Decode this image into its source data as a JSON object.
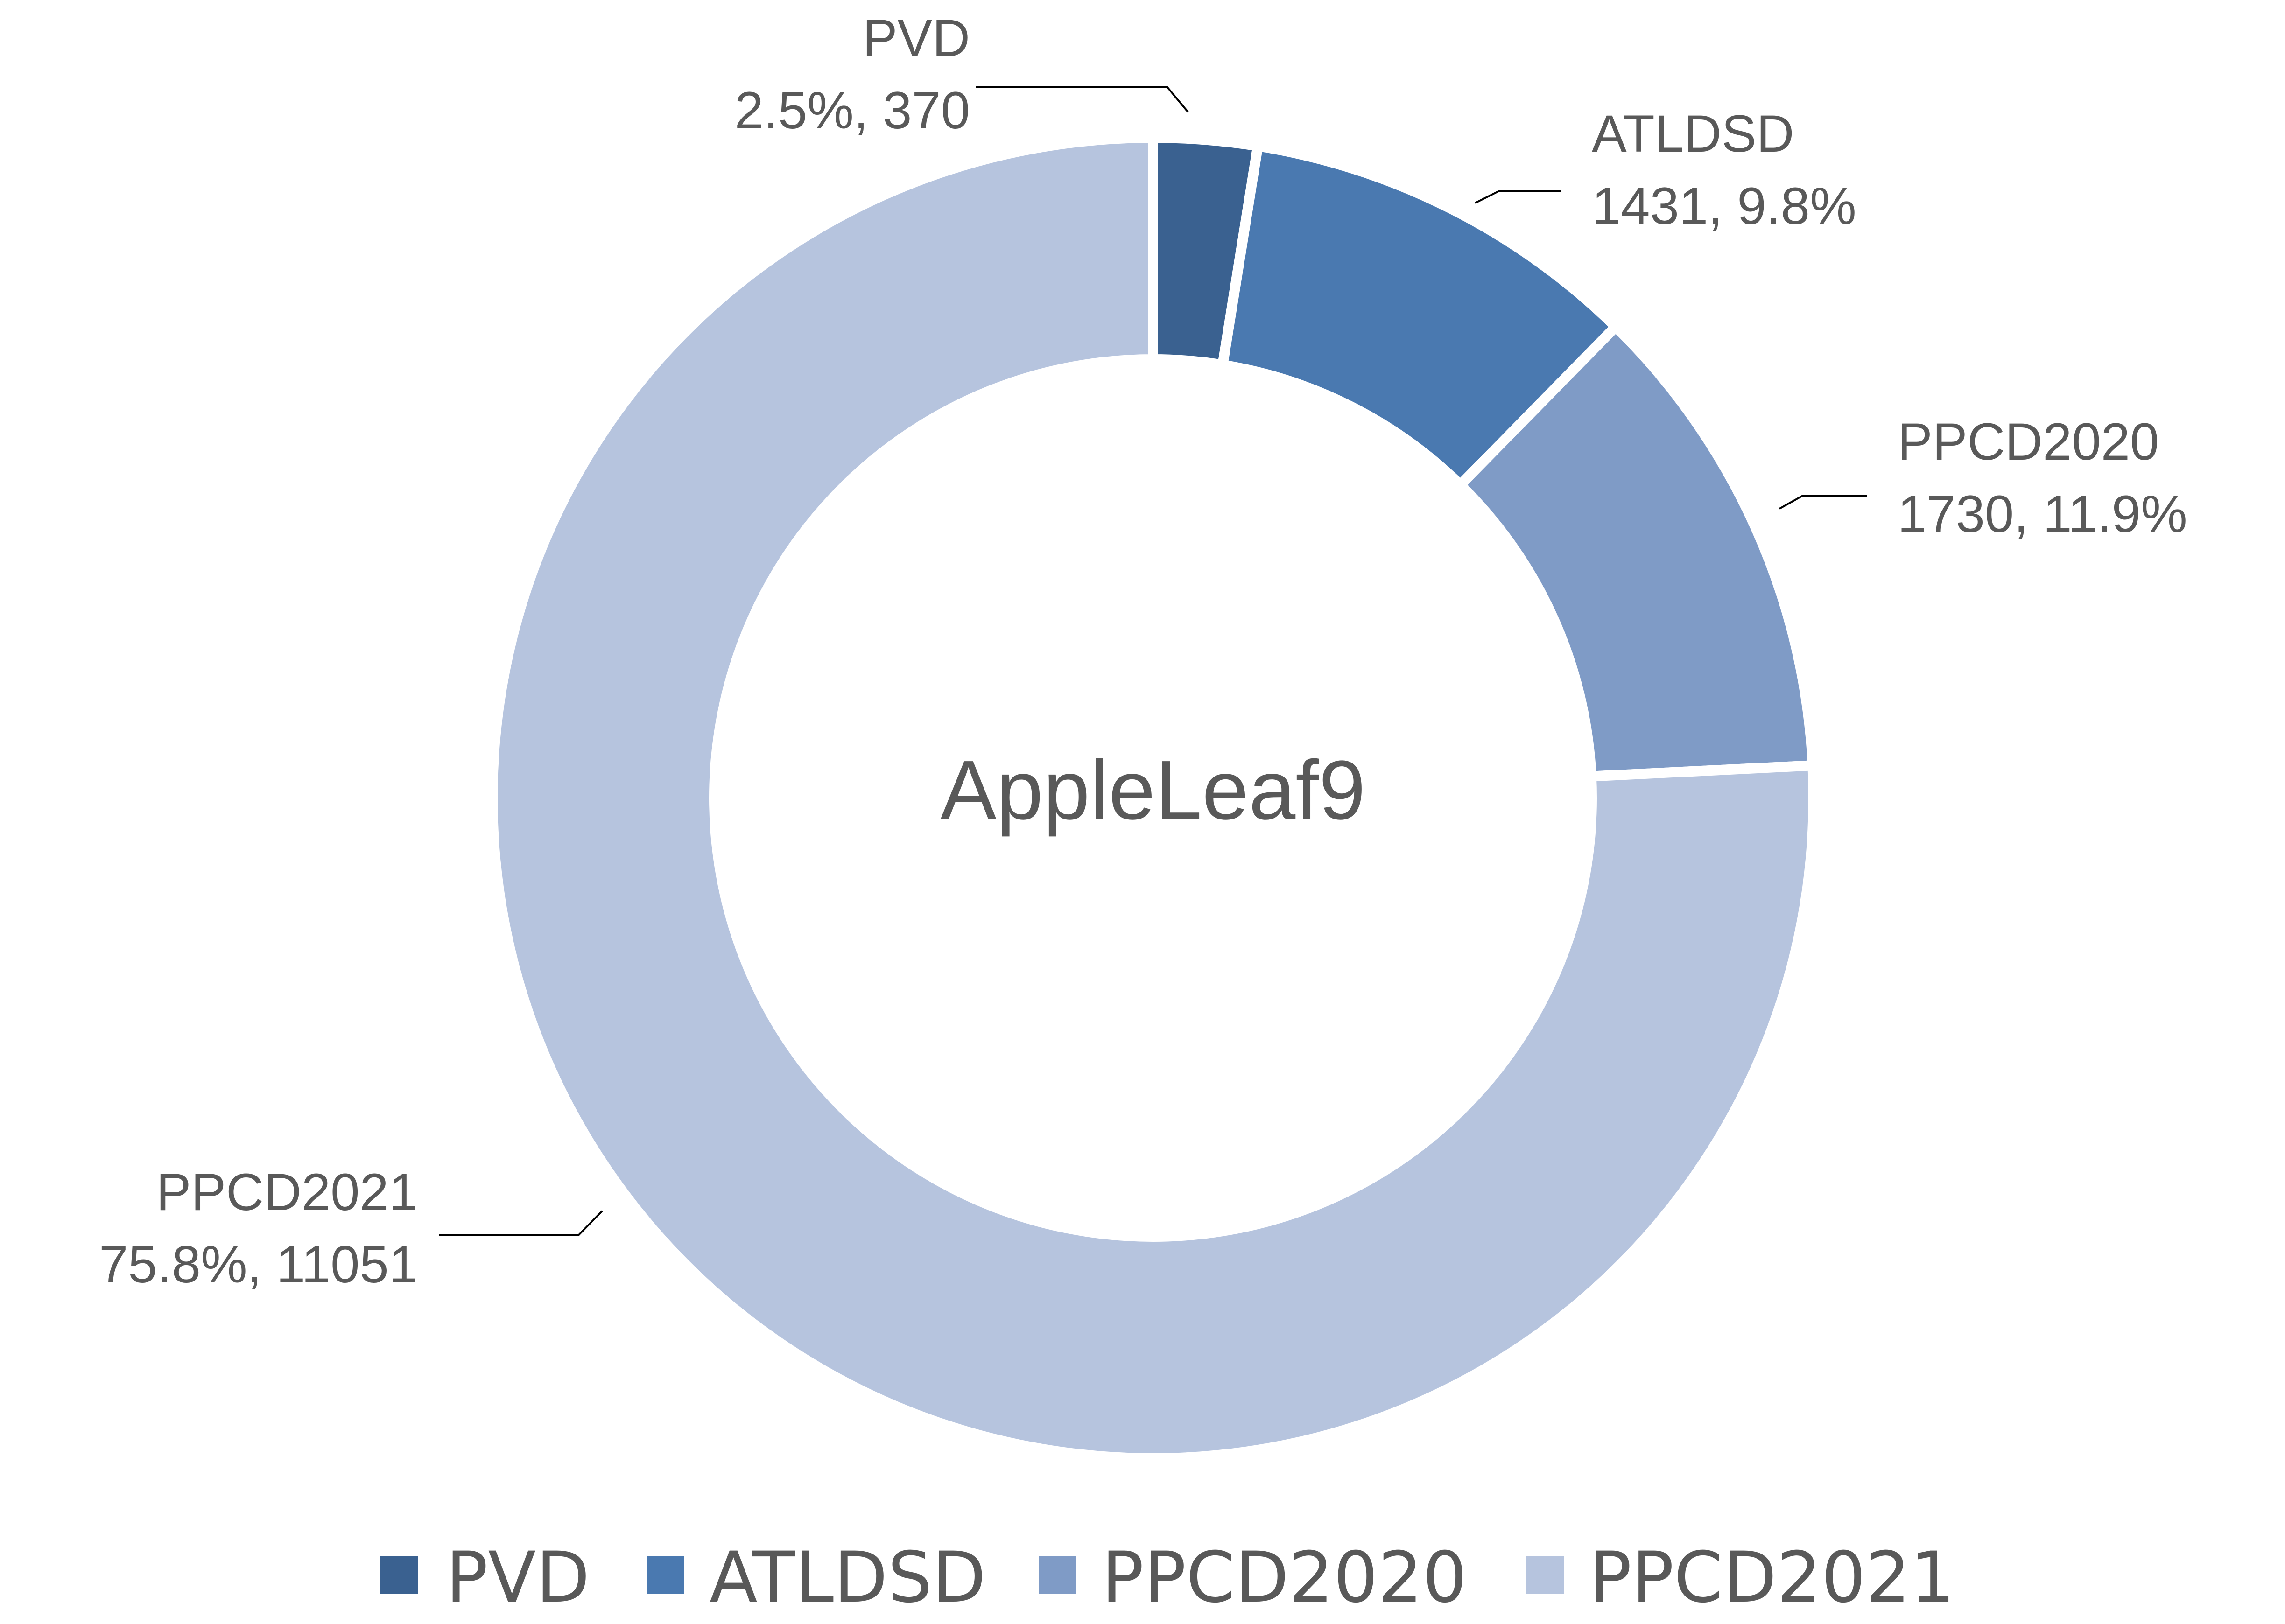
{
  "chart_data": {
    "type": "pie",
    "variant": "donut",
    "center_label": "AppleLeaf9",
    "series": [
      {
        "name": "PVD",
        "value": 370,
        "percent": "2.5%",
        "color": "#3a6190",
        "label_lines": [
          "PVD",
          "2.5%, 370"
        ]
      },
      {
        "name": "ATLDSD",
        "value": 1431,
        "percent": "9.8%",
        "color": "#4a79b0",
        "label_lines": [
          "ATLDSD",
          "1431, 9.8%"
        ]
      },
      {
        "name": "PPCD2020",
        "value": 1730,
        "percent": "11.9%",
        "color": "#7f9bc6",
        "label_lines": [
          "PPCD2020",
          "1730, 11.9%"
        ]
      },
      {
        "name": "PPCD2021",
        "value": 11051,
        "percent": "75.8%",
        "color": "#b6c4de",
        "label_lines": [
          "PPCD2021",
          "75.8%, 11051"
        ]
      }
    ],
    "legend": {
      "position": "bottom",
      "entries": [
        "PVD",
        "ATLDSD",
        "PPCD2020",
        "PPCD2021"
      ]
    }
  }
}
